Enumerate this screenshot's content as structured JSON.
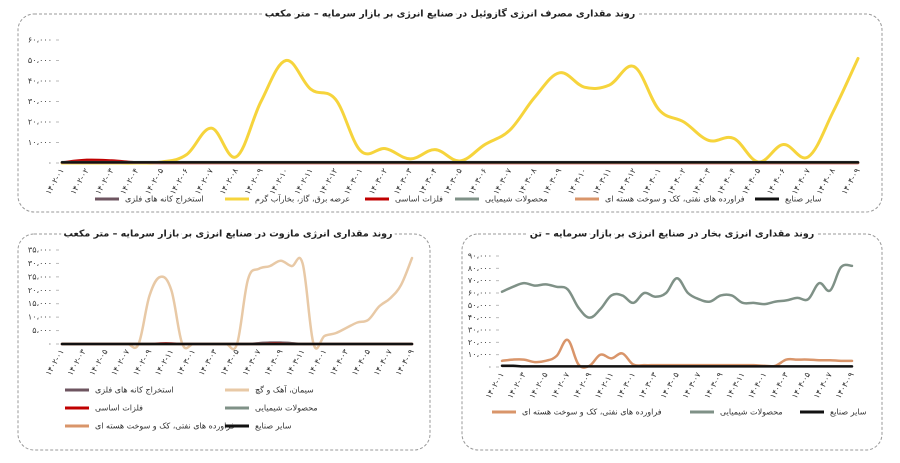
{
  "chart_data": [
    {
      "type": "line",
      "title": "روند مقداری مصرف انرژی گازوئیل در صنایع انرژی بر بازار سرمایه – متر مکعب",
      "categories": [
        "۱۴۰۲-۰۱",
        "۱۴۰۲-۰۲",
        "۱۴۰۲-۰۳",
        "۱۴۰۲-۰۴",
        "۱۴۰۲-۰۵",
        "۱۴۰۲-۰۶",
        "۱۴۰۲-۰۷",
        "۱۴۰۲-۰۸",
        "۱۴۰۲-۰۹",
        "۱۴۰۲-۱۰",
        "۱۴۰۲-۱۱",
        "۱۴۰۲-۱۲",
        "۱۴۰۳-۰۱",
        "۱۴۰۳-۰۲",
        "۱۴۰۳-۰۳",
        "۱۴۰۳-۰۴",
        "۱۴۰۳-۰۵",
        "۱۴۰۳-۰۶",
        "۱۴۰۳-۰۷",
        "۱۴۰۳-۰۸",
        "۱۴۰۳-۰۹",
        "۱۴۰۳-۱۰",
        "۱۴۰۳-۱۱",
        "۱۴۰۳-۱۲",
        "۱۴۰۴-۰۱",
        "۱۴۰۴-۰۲",
        "۱۴۰۴-۰۳",
        "۱۴۰۴-۰۴",
        "۱۴۰۴-۰۵",
        "۱۴۰۴-۰۶",
        "۱۴۰۴-۰۷",
        "۱۴۰۴-۰۸",
        "۱۴۰۴-۰۹"
      ],
      "ylim": [
        0,
        60000
      ],
      "yticks": [
        {
          "value": 0,
          "label": "۰"
        },
        {
          "value": 10000,
          "label": "۱۰،۰۰۰"
        },
        {
          "value": 20000,
          "label": "۲۰،۰۰۰"
        },
        {
          "value": 30000,
          "label": "۳۰،۰۰۰"
        },
        {
          "value": 40000,
          "label": "۴۰،۰۰۰"
        },
        {
          "value": 50000,
          "label": "۵۰،۰۰۰"
        },
        {
          "value": 60000,
          "label": "۶۰،۰۰۰"
        }
      ],
      "grid": false,
      "series": [
        {
          "name": "استخراج کانه های فلزی",
          "color": "#6e5560",
          "values": [
            200,
            200,
            200,
            200,
            200,
            200,
            200,
            200,
            200,
            200,
            200,
            200,
            200,
            200,
            200,
            200,
            200,
            200,
            200,
            200,
            200,
            200,
            200,
            200,
            200,
            200,
            200,
            200,
            200,
            200,
            200,
            200,
            200
          ]
        },
        {
          "name": "عرضه برق، گاز، بخارآب گرم",
          "color": "#f6d43c",
          "values": [
            0,
            0,
            0,
            0,
            500,
            4000,
            17000,
            3000,
            30000,
            50000,
            36000,
            31000,
            6000,
            7000,
            2000,
            6500,
            1000,
            9000,
            16000,
            32000,
            44000,
            37000,
            38000,
            47000,
            26000,
            20000,
            11000,
            12000,
            500,
            9000,
            3000,
            25000,
            51000
          ]
        },
        {
          "name": "فلزات اساسی",
          "color": "#c00000",
          "values": [
            300,
            1500,
            1200,
            300,
            0,
            0,
            0,
            0,
            0,
            0,
            0,
            0,
            0,
            0,
            0,
            0,
            0,
            0,
            0,
            0,
            0,
            0,
            0,
            0,
            0,
            0,
            0,
            0,
            0,
            0,
            0,
            0,
            0
          ]
        },
        {
          "name": "محصولات شیمیایی",
          "color": "#7f9187",
          "values": [
            400,
            400,
            400,
            400,
            400,
            400,
            400,
            400,
            400,
            400,
            400,
            400,
            400,
            400,
            400,
            400,
            400,
            400,
            400,
            400,
            400,
            400,
            400,
            400,
            400,
            400,
            400,
            400,
            400,
            400,
            400,
            400,
            400
          ]
        },
        {
          "name": "فراورده های نفتی، کک و سوخت هسته ای",
          "color": "#d9956a",
          "values": [
            100,
            100,
            100,
            100,
            100,
            100,
            100,
            100,
            100,
            100,
            100,
            100,
            100,
            100,
            100,
            100,
            100,
            100,
            100,
            100,
            100,
            100,
            100,
            100,
            100,
            100,
            100,
            100,
            100,
            100,
            100,
            100,
            100
          ]
        },
        {
          "name": "سایر صنایع",
          "color": "#111111",
          "values": [
            300,
            300,
            300,
            300,
            300,
            300,
            300,
            300,
            300,
            300,
            300,
            300,
            300,
            300,
            300,
            300,
            300,
            300,
            300,
            300,
            300,
            300,
            300,
            300,
            300,
            300,
            300,
            300,
            300,
            300,
            300,
            300,
            300
          ]
        }
      ]
    },
    {
      "type": "line",
      "title": "روند مقداری انرژی مازوت در صنایع انرژی بر بازار سرمایه – متر مکعب",
      "categories": [
        "۱۴۰۲-۰۱",
        null,
        "۱۴۰۲-۰۳",
        null,
        "۱۴۰۲-۰۵",
        null,
        "۱۴۰۲-۰۷",
        null,
        "۱۴۰۲-۰۹",
        null,
        "۱۴۰۲-۱۱",
        null,
        "۱۴۰۳-۰۱",
        null,
        "۱۴۰۳-۰۳",
        null,
        "۱۴۰۳-۰۵",
        null,
        "۱۴۰۳-۰۷",
        null,
        "۱۴۰۳-۰۹",
        null,
        "۱۴۰۳-۱۱",
        null,
        "۱۴۰۴-۰۱",
        null,
        "۱۴۰۴-۰۳",
        null,
        "۱۴۰۴-۰۵",
        null,
        "۱۴۰۴-۰۷",
        null,
        "۱۴۰۴-۰۹"
      ],
      "ylim": [
        0,
        35000
      ],
      "yticks": [
        {
          "value": 0,
          "label": "۰"
        },
        {
          "value": 5000,
          "label": "۵،۰۰۰"
        },
        {
          "value": 10000,
          "label": "۱۰،۰۰۰"
        },
        {
          "value": 15000,
          "label": "۱۵،۰۰۰"
        },
        {
          "value": 20000,
          "label": "۲۰،۰۰۰"
        },
        {
          "value": 25000,
          "label": "۲۵،۰۰۰"
        },
        {
          "value": 30000,
          "label": "۳۰،۰۰۰"
        },
        {
          "value": 35000,
          "label": "۳۵،۰۰۰"
        }
      ],
      "grid": false,
      "series": [
        {
          "name": "استخراج کانه های فلزی",
          "color": "#6e5560",
          "values": [
            0,
            0,
            0,
            0,
            0,
            0,
            0,
            0,
            0,
            0,
            0,
            0,
            0,
            0,
            0,
            0,
            0,
            0,
            300,
            500,
            500,
            300,
            0,
            0,
            0,
            0,
            0,
            0,
            0,
            0,
            0,
            0,
            0
          ]
        },
        {
          "name": "سیمان، آهک و گچ",
          "color": "#e8c9a6",
          "values": [
            0,
            0,
            0,
            0,
            0,
            0,
            0,
            0,
            18000,
            25000,
            20000,
            0,
            0,
            0,
            0,
            0,
            0,
            24000,
            28000,
            29000,
            31000,
            29000,
            30000,
            0,
            3000,
            4000,
            6000,
            8000,
            9000,
            14000,
            17000,
            22000,
            32000
          ]
        },
        {
          "name": "فلزات اساسی",
          "color": "#c00000",
          "values": [
            0,
            0,
            0,
            0,
            0,
            0,
            0,
            0,
            0,
            200,
            200,
            0,
            0,
            0,
            0,
            0,
            0,
            0,
            0,
            200,
            200,
            0,
            0,
            0,
            0,
            0,
            0,
            0,
            0,
            0,
            0,
            0,
            0
          ]
        },
        {
          "name": "محصولات شیمیایی",
          "color": "#7f9187",
          "values": [
            0,
            0,
            0,
            0,
            0,
            0,
            0,
            0,
            0,
            0,
            0,
            0,
            0,
            0,
            0,
            0,
            0,
            0,
            0,
            0,
            0,
            0,
            0,
            0,
            0,
            0,
            0,
            0,
            0,
            0,
            0,
            0,
            0
          ]
        },
        {
          "name": "فراورده های نفتی، کک و سوخت هسته ای",
          "color": "#d9956a",
          "values": [
            0,
            0,
            0,
            0,
            0,
            0,
            0,
            0,
            0,
            0,
            0,
            0,
            0,
            0,
            0,
            0,
            0,
            0,
            0,
            0,
            0,
            0,
            0,
            0,
            0,
            0,
            0,
            0,
            0,
            0,
            0,
            0,
            0
          ]
        },
        {
          "name": "سایر صنایع",
          "color": "#111111",
          "values": [
            0,
            0,
            0,
            0,
            0,
            0,
            0,
            0,
            0,
            0,
            0,
            0,
            0,
            0,
            0,
            0,
            0,
            0,
            0,
            0,
            0,
            0,
            0,
            0,
            0,
            0,
            0,
            0,
            0,
            0,
            0,
            0,
            0
          ]
        }
      ]
    },
    {
      "type": "line",
      "title": "روند مقداری انرژی بخار در صنایع انرژی بر بازار سرمایه – تن",
      "categories": [
        "۱۴۰۲-۰۱",
        null,
        "۱۴۰۲-۰۳",
        null,
        "۱۴۰۲-۰۵",
        null,
        "۱۴۰۲-۰۷",
        null,
        "۱۴۰۲-۰۹",
        null,
        "۱۴۰۲-۱۱",
        null,
        "۱۴۰۳-۰۱",
        null,
        "۱۴۰۳-۰۳",
        null,
        "۱۴۰۳-۰۵",
        null,
        "۱۴۰۳-۰۷",
        null,
        "۱۴۰۳-۰۹",
        null,
        "۱۴۰۳-۱۱",
        null,
        "۱۴۰۴-۰۱",
        null,
        "۱۴۰۴-۰۳",
        null,
        "۱۴۰۴-۰۵",
        null,
        "۱۴۰۴-۰۷",
        null,
        "۱۴۰۴-۰۹"
      ],
      "ylim": [
        0,
        90000
      ],
      "yticks": [
        {
          "value": 0,
          "label": "۰"
        },
        {
          "value": 10000,
          "label": "۱۰،۰۰۰"
        },
        {
          "value": 20000,
          "label": "۲۰،۰۰۰"
        },
        {
          "value": 30000,
          "label": "۳۰،۰۰۰"
        },
        {
          "value": 40000,
          "label": "۴۰،۰۰۰"
        },
        {
          "value": 50000,
          "label": "۵۰،۰۰۰"
        },
        {
          "value": 60000,
          "label": "۶۰،۰۰۰"
        },
        {
          "value": 70000,
          "label": "۷۰،۰۰۰"
        },
        {
          "value": 80000,
          "label": "۸۰،۰۰۰"
        },
        {
          "value": 90000,
          "label": "۹۰،۰۰۰"
        }
      ],
      "grid": false,
      "series": [
        {
          "name": "فراورده های نفتی، کک و سوخت هسته ای",
          "color": "#d9956a",
          "values": [
            5000,
            6000,
            6000,
            4000,
            5000,
            9000,
            22000,
            2000,
            1000,
            10000,
            7000,
            11000,
            2000,
            1500,
            1500,
            1500,
            1500,
            1500,
            1500,
            1500,
            1500,
            1500,
            1500,
            1500,
            1000,
            1000,
            6000,
            6000,
            6000,
            5500,
            5500,
            5000,
            5000
          ]
        },
        {
          "name": "محصولات شیمیایی",
          "color": "#7f9187",
          "values": [
            61000,
            65000,
            68000,
            66000,
            67000,
            65000,
            63000,
            48000,
            40000,
            47000,
            58000,
            58000,
            52000,
            60000,
            57000,
            60000,
            72000,
            60000,
            55000,
            53000,
            58000,
            58000,
            52000,
            52000,
            51000,
            53000,
            54000,
            56000,
            55000,
            68000,
            62000,
            81000,
            82000
          ]
        },
        {
          "name": "سایر صنایع",
          "color": "#111111",
          "values": [
            1000,
            1000,
            500,
            500,
            500,
            500,
            500,
            500,
            500,
            500,
            500,
            500,
            500,
            500,
            500,
            500,
            500,
            500,
            500,
            500,
            500,
            500,
            500,
            500,
            500,
            500,
            500,
            500,
            500,
            500,
            500,
            500,
            500
          ]
        }
      ]
    }
  ]
}
